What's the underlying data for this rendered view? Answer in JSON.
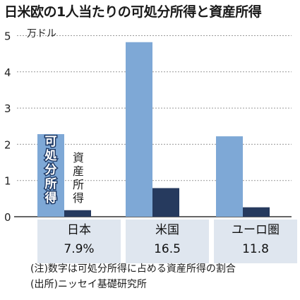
{
  "title": "日米欧の1人当たりの可処分所得と資産所得",
  "unit_label": "万ドル",
  "colors": {
    "disposable": "#7ea8d6",
    "asset": "#263a5e",
    "label_band": "#dfe6ef",
    "grid": "#999999",
    "axis": "#333333"
  },
  "chart_data": {
    "type": "bar",
    "title": "日米欧の1人当たりの可処分所得と資産所得",
    "ylabel": "万ドル",
    "ylim": [
      0,
      5
    ],
    "yticks": [
      0,
      1,
      2,
      3,
      4,
      5
    ],
    "grid": true,
    "categories": [
      "日本",
      "米国",
      "ユーロ圏"
    ],
    "category_values": [
      "7.9%",
      "16.5",
      "11.8"
    ],
    "series": [
      {
        "name": "可処分所得",
        "values": [
          2.28,
          4.82,
          2.22
        ]
      },
      {
        "name": "資産所得",
        "values": [
          0.18,
          0.79,
          0.26
        ]
      }
    ],
    "series_labels_in_chart": {
      "disposable": [
        "可",
        "処",
        "分",
        "所",
        "得"
      ],
      "asset": [
        "資",
        "産",
        "所",
        "得"
      ]
    }
  },
  "notes": [
    "(注)数字は可処分所得に占める資産所得の割合",
    "(出所)ニッセイ基礎研究所"
  ]
}
